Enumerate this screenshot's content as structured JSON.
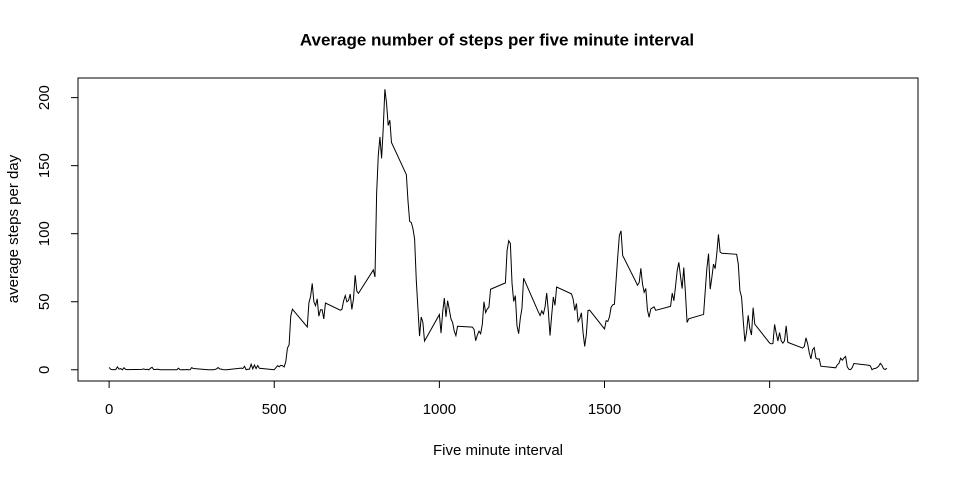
{
  "chart_data": {
    "type": "line",
    "title": "Average number of steps per five minute interval",
    "x_label": "Five minute interval",
    "y_label": "average steps per day",
    "color": "#000000",
    "xlim": [
      -94.2,
      2449.2
    ],
    "xticks": [
      0,
      500,
      1000,
      1500,
      2000
    ],
    "ylim": [
      -8.25,
      214.42
    ],
    "yticks": [
      0,
      50,
      100,
      150,
      200
    ],
    "x": [
      0,
      5,
      10,
      15,
      20,
      25,
      30,
      35,
      40,
      45,
      50,
      55,
      100,
      105,
      110,
      115,
      120,
      125,
      130,
      135,
      140,
      145,
      150,
      155,
      200,
      205,
      210,
      215,
      220,
      225,
      230,
      235,
      240,
      245,
      250,
      255,
      300,
      305,
      310,
      315,
      320,
      325,
      330,
      335,
      340,
      345,
      350,
      355,
      400,
      405,
      410,
      415,
      420,
      425,
      430,
      435,
      440,
      445,
      450,
      455,
      500,
      505,
      510,
      515,
      520,
      525,
      530,
      535,
      540,
      545,
      550,
      555,
      600,
      605,
      610,
      615,
      620,
      625,
      630,
      635,
      640,
      645,
      650,
      655,
      700,
      705,
      710,
      715,
      720,
      725,
      730,
      735,
      740,
      745,
      750,
      755,
      800,
      805,
      810,
      815,
      820,
      825,
      830,
      835,
      840,
      845,
      850,
      855,
      900,
      905,
      910,
      915,
      920,
      925,
      930,
      935,
      940,
      945,
      950,
      955,
      1000,
      1005,
      1010,
      1015,
      1020,
      1025,
      1030,
      1035,
      1040,
      1045,
      1050,
      1055,
      1100,
      1105,
      1110,
      1115,
      1120,
      1125,
      1130,
      1135,
      1140,
      1145,
      1150,
      1155,
      1200,
      1205,
      1210,
      1215,
      1220,
      1225,
      1230,
      1235,
      1240,
      1245,
      1250,
      1255,
      1300,
      1305,
      1310,
      1315,
      1320,
      1325,
      1330,
      1335,
      1340,
      1345,
      1350,
      1355,
      1400,
      1405,
      1410,
      1415,
      1420,
      1425,
      1430,
      1435,
      1440,
      1445,
      1450,
      1455,
      1500,
      1505,
      1510,
      1515,
      1520,
      1525,
      1530,
      1535,
      1540,
      1545,
      1550,
      1555,
      1600,
      1605,
      1610,
      1615,
      1620,
      1625,
      1630,
      1635,
      1640,
      1645,
      1650,
      1655,
      1700,
      1705,
      1710,
      1715,
      1720,
      1725,
      1730,
      1735,
      1740,
      1745,
      1750,
      1755,
      1800,
      1805,
      1810,
      1815,
      1820,
      1825,
      1830,
      1835,
      1840,
      1845,
      1850,
      1855,
      1900,
      1905,
      1910,
      1915,
      1920,
      1925,
      1930,
      1935,
      1940,
      1945,
      1950,
      1955,
      2000,
      2005,
      2010,
      2015,
      2020,
      2025,
      2030,
      2035,
      2040,
      2045,
      2050,
      2055,
      2100,
      2105,
      2110,
      2115,
      2120,
      2125,
      2130,
      2135,
      2140,
      2145,
      2150,
      2155,
      2200,
      2205,
      2210,
      2215,
      2220,
      2225,
      2230,
      2235,
      2240,
      2245,
      2250,
      2255,
      2300,
      2305,
      2310,
      2315,
      2320,
      2325,
      2330,
      2335,
      2340,
      2345,
      2350,
      2355
    ],
    "values": [
      1.72,
      0.34,
      0.13,
      0.15,
      0.08,
      2.09,
      0.53,
      0.87,
      0,
      1.47,
      0.3,
      0.13,
      0.32,
      0.68,
      0.15,
      0.34,
      0,
      1.11,
      1.83,
      0.17,
      0.17,
      0.38,
      0.26,
      0,
      0,
      0,
      1.13,
      0,
      0,
      0.13,
      0,
      0.23,
      0,
      0,
      1.55,
      0.94,
      0,
      0,
      0,
      0,
      0.21,
      0.62,
      1.62,
      0.58,
      0.49,
      0.08,
      0,
      0,
      1.19,
      0.94,
      2.57,
      0,
      0.34,
      0.36,
      4.11,
      0.66,
      3.49,
      0.83,
      3.11,
      1.11,
      0,
      1.57,
      3,
      2.25,
      3.32,
      2.96,
      2.09,
      6.06,
      16.02,
      18.34,
      39.45,
      44.49,
      31.49,
      49.26,
      53.77,
      63.45,
      49.96,
      47.08,
      52.15,
      39.34,
      44.02,
      44.17,
      37.36,
      49.04,
      43.81,
      44.38,
      50.51,
      54.51,
      49.92,
      50.98,
      55.68,
      44.32,
      52.26,
      69.55,
      57.85,
      56.15,
      73.38,
      68.21,
      129.43,
      157.53,
      171.15,
      155.4,
      177.3,
      206.17,
      195.92,
      179.57,
      183.4,
      167.02,
      143.45,
      124.04,
      109.11,
      108.11,
      103.72,
      95.97,
      66.21,
      45.23,
      24.79,
      38.75,
      34.98,
      21.06,
      40.57,
      26.98,
      42.42,
      52.66,
      38.92,
      50.79,
      44.28,
      37.42,
      34.7,
      28.34,
      25.09,
      31.94,
      31.36,
      29.68,
      21.32,
      25.55,
      28.38,
      26.47,
      33.43,
      49.98,
      42.04,
      44.6,
      46.04,
      59.19,
      63.87,
      87.7,
      94.85,
      92.77,
      63.4,
      50.17,
      54.47,
      32.42,
      26.53,
      37.74,
      45.06,
      67.28,
      42.34,
      39.89,
      43.26,
      40.98,
      46.25,
      56.43,
      42.75,
      25.13,
      39.96,
      53.55,
      47.32,
      60.81,
      55.75,
      51.96,
      43.58,
      48.7,
      35.47,
      37.55,
      41.85,
      27.51,
      17.11,
      26.08,
      43.62,
      43.77,
      30.02,
      36.08,
      35.49,
      38.85,
      45.96,
      47.75,
      48.13,
      65.32,
      82.91,
      98.66,
      102.11,
      83.96,
      62.13,
      64.13,
      74.55,
      63.17,
      56.91,
      59.77,
      43.87,
      38.57,
      44.66,
      45.45,
      46.21,
      43.68,
      46.62,
      56.3,
      50.72,
      61.23,
      72.72,
      78.94,
      68.94,
      59.66,
      75.09,
      56.51,
      34.77,
      37.45,
      40.68,
      58.02,
      74.7,
      85.32,
      59.26,
      67.77,
      77.7,
      74.25,
      85.34,
      99.45,
      86.58,
      85.6,
      84.87,
      77.83,
      58.04,
      53.36,
      36.32,
      20.72,
      27.4,
      40.02,
      30.21,
      25.55,
      45.66,
      33.53,
      19.62,
      19.02,
      19.34,
      33.34,
      26.81,
      21.17,
      27.3,
      21.34,
      19.55,
      21.32,
      32.3,
      20.15,
      15.94,
      17.23,
      23.45,
      19.25,
      12.45,
      8.02,
      14.66,
      16.3,
      8.68,
      7.79,
      8.13,
      2.62,
      1.45,
      3.68,
      4.81,
      8.51,
      7.08,
      8.7,
      9.75,
      2.21,
      0.32,
      0.11,
      1.6,
      4.6,
      3.3,
      2.85,
      0,
      0.83,
      0.96,
      1.58,
      2.6,
      4.7,
      3.3,
      0.64,
      0.23,
      1.08
    ]
  }
}
